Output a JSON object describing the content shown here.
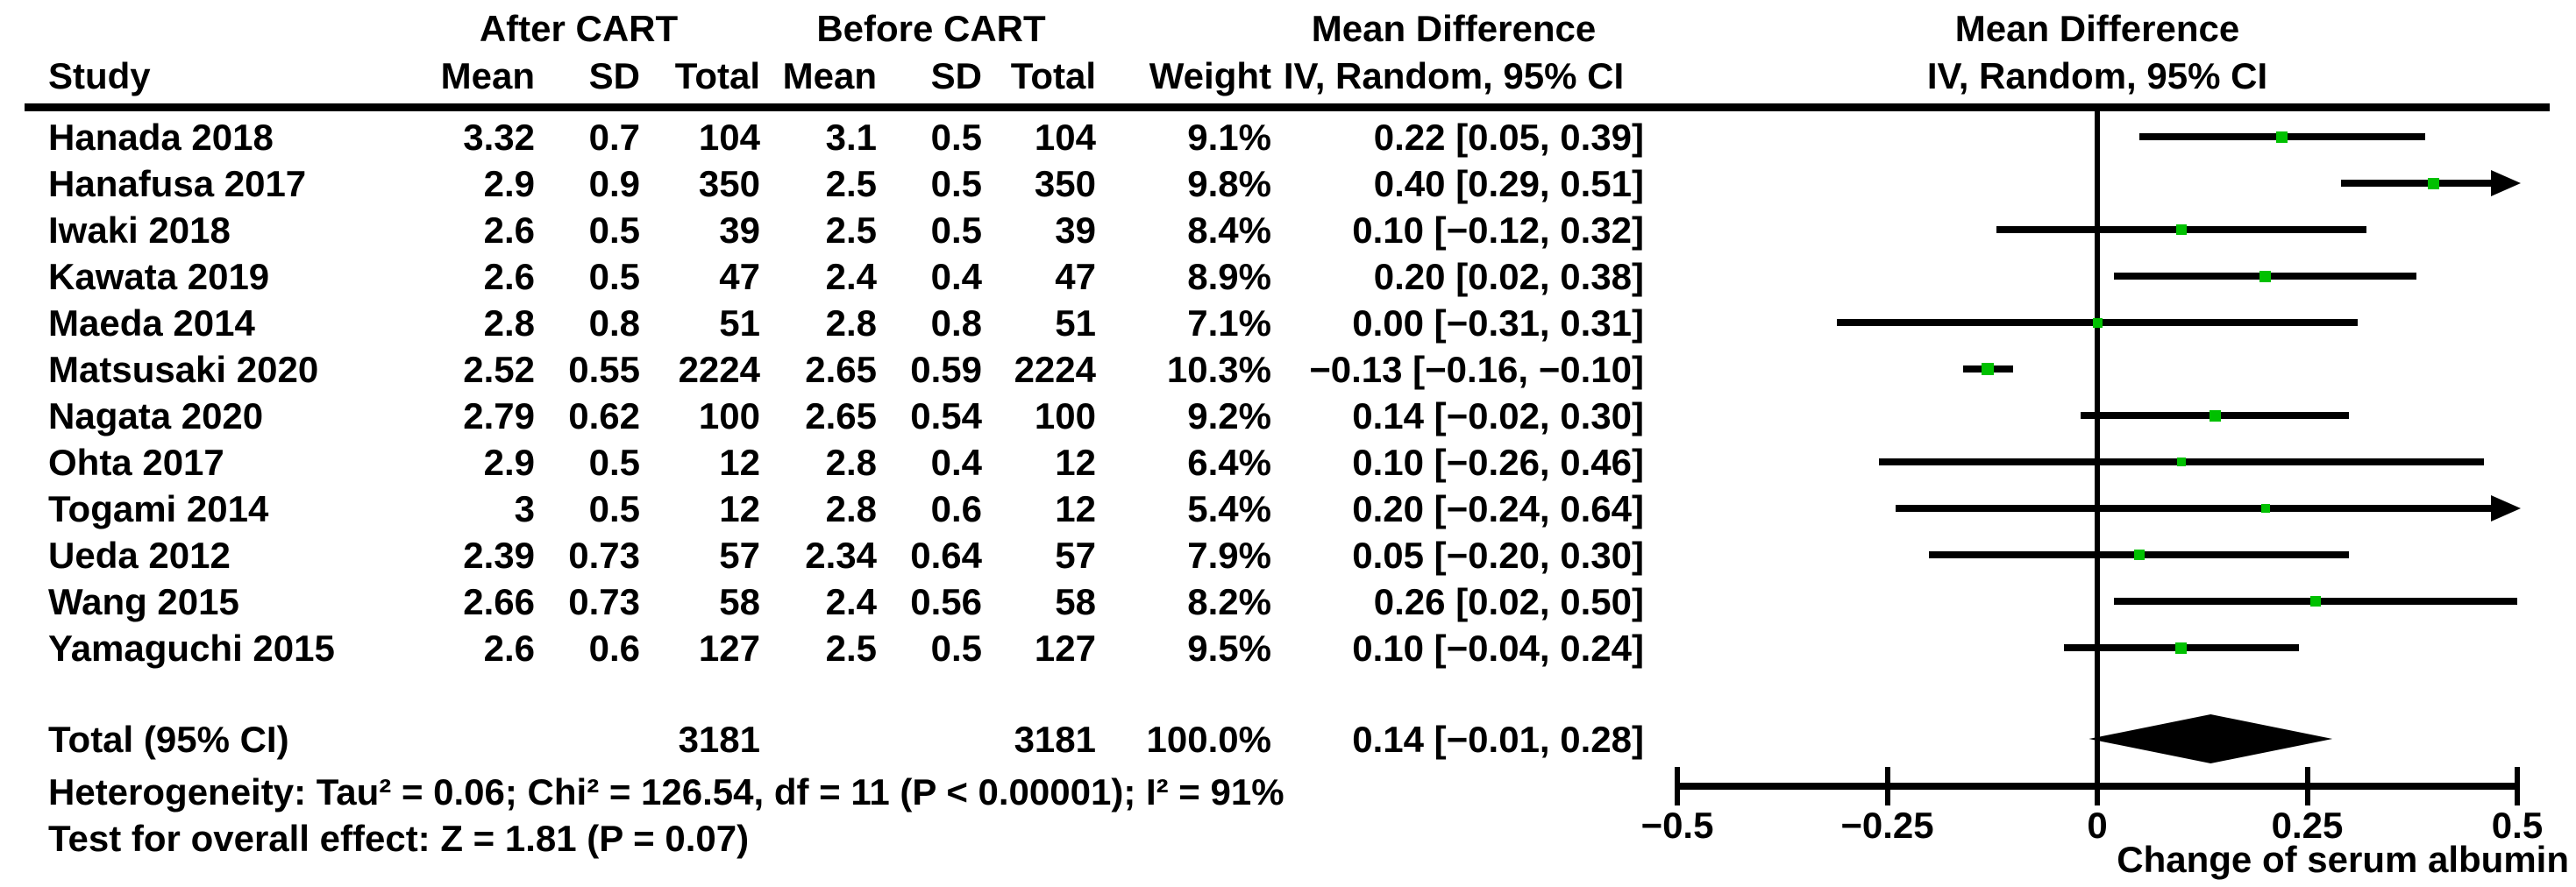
{
  "header": {
    "group_after": "After CART",
    "group_before": "Before CART",
    "col_study": "Study",
    "col_mean": "Mean",
    "col_sd": "SD",
    "col_total": "Total",
    "col_weight": "Weight",
    "md_title": "Mean Difference",
    "md_subtitle": "IV, Random, 95% CI"
  },
  "total_row": {
    "label": "Total (95% CI)",
    "total_after": "3181",
    "total_before": "3181",
    "weight": "100.0%",
    "ci_text": "0.14 [−0.01, 0.28]"
  },
  "footer": {
    "heterogeneity": "Heterogeneity: Tau² = 0.06; Chi² = 126.54, df = 11 (P < 0.00001); I² = 91%",
    "overall_effect": "Test for overall effect: Z = 1.81 (P = 0.07)"
  },
  "chart_data": {
    "type": "forest",
    "effect_measure": "Mean Difference",
    "method": "IV, Random, 95% CI",
    "marker_color": "#00c000",
    "diamond_color": "#000000",
    "axis": {
      "min": -0.5,
      "max": 0.5,
      "ticks": [
        -0.5,
        -0.25,
        0,
        0.25,
        0.5
      ],
      "tick_labels": [
        "−0.5",
        "−0.25",
        "0",
        "0.25",
        "0.5"
      ],
      "label": "Change of serum albumin"
    },
    "studies": [
      {
        "study": "Hanada 2018",
        "mean_after": "3.32",
        "sd_after": "0.7",
        "total_after": "104",
        "mean_before": "3.1",
        "sd_before": "0.5",
        "total_before": "104",
        "weight": "9.1%",
        "weight_pct": 9.1,
        "ci_text": "0.22 [0.05, 0.39]",
        "md": 0.22,
        "lo": 0.05,
        "hi": 0.39
      },
      {
        "study": "Hanafusa 2017",
        "mean_after": "2.9",
        "sd_after": "0.9",
        "total_after": "350",
        "mean_before": "2.5",
        "sd_before": "0.5",
        "total_before": "350",
        "weight": "9.8%",
        "weight_pct": 9.8,
        "ci_text": "0.40 [0.29, 0.51]",
        "md": 0.4,
        "lo": 0.29,
        "hi": 0.51
      },
      {
        "study": "Iwaki 2018",
        "mean_after": "2.6",
        "sd_after": "0.5",
        "total_after": "39",
        "mean_before": "2.5",
        "sd_before": "0.5",
        "total_before": "39",
        "weight": "8.4%",
        "weight_pct": 8.4,
        "ci_text": "0.10 [−0.12, 0.32]",
        "md": 0.1,
        "lo": -0.12,
        "hi": 0.32
      },
      {
        "study": "Kawata 2019",
        "mean_after": "2.6",
        "sd_after": "0.5",
        "total_after": "47",
        "mean_before": "2.4",
        "sd_before": "0.4",
        "total_before": "47",
        "weight": "8.9%",
        "weight_pct": 8.9,
        "ci_text": "0.20 [0.02, 0.38]",
        "md": 0.2,
        "lo": 0.02,
        "hi": 0.38
      },
      {
        "study": "Maeda 2014",
        "mean_after": "2.8",
        "sd_after": "0.8",
        "total_after": "51",
        "mean_before": "2.8",
        "sd_before": "0.8",
        "total_before": "51",
        "weight": "7.1%",
        "weight_pct": 7.1,
        "ci_text": "0.00 [−0.31, 0.31]",
        "md": 0.0,
        "lo": -0.31,
        "hi": 0.31
      },
      {
        "study": "Matsusaki 2020",
        "mean_after": "2.52",
        "sd_after": "0.55",
        "total_after": "2224",
        "mean_before": "2.65",
        "sd_before": "0.59",
        "total_before": "2224",
        "weight": "10.3%",
        "weight_pct": 10.3,
        "ci_text": "−0.13 [−0.16, −0.10]",
        "md": -0.13,
        "lo": -0.16,
        "hi": -0.1
      },
      {
        "study": "Nagata 2020",
        "mean_after": "2.79",
        "sd_after": "0.62",
        "total_after": "100",
        "mean_before": "2.65",
        "sd_before": "0.54",
        "total_before": "100",
        "weight": "9.2%",
        "weight_pct": 9.2,
        "ci_text": "0.14 [−0.02, 0.30]",
        "md": 0.14,
        "lo": -0.02,
        "hi": 0.3
      },
      {
        "study": "Ohta 2017",
        "mean_after": "2.9",
        "sd_after": "0.5",
        "total_after": "12",
        "mean_before": "2.8",
        "sd_before": "0.4",
        "total_before": "12",
        "weight": "6.4%",
        "weight_pct": 6.4,
        "ci_text": "0.10 [−0.26, 0.46]",
        "md": 0.1,
        "lo": -0.26,
        "hi": 0.46
      },
      {
        "study": "Togami 2014",
        "mean_after": "3",
        "sd_after": "0.5",
        "total_after": "12",
        "mean_before": "2.8",
        "sd_before": "0.6",
        "total_before": "12",
        "weight": "5.4%",
        "weight_pct": 5.4,
        "ci_text": "0.20 [−0.24, 0.64]",
        "md": 0.2,
        "lo": -0.24,
        "hi": 0.64
      },
      {
        "study": "Ueda 2012",
        "mean_after": "2.39",
        "sd_after": "0.73",
        "total_after": "57",
        "mean_before": "2.34",
        "sd_before": "0.64",
        "total_before": "57",
        "weight": "7.9%",
        "weight_pct": 7.9,
        "ci_text": "0.05 [−0.20, 0.30]",
        "md": 0.05,
        "lo": -0.2,
        "hi": 0.3
      },
      {
        "study": "Wang 2015",
        "mean_after": "2.66",
        "sd_after": "0.73",
        "total_after": "58",
        "mean_before": "2.4",
        "sd_before": "0.56",
        "total_before": "58",
        "weight": "8.2%",
        "weight_pct": 8.2,
        "ci_text": "0.26 [0.02, 0.50]",
        "md": 0.26,
        "lo": 0.02,
        "hi": 0.5
      },
      {
        "study": "Yamaguchi 2015",
        "mean_after": "2.6",
        "sd_after": "0.6",
        "total_after": "127",
        "mean_before": "2.5",
        "sd_before": "0.5",
        "total_before": "127",
        "weight": "9.5%",
        "weight_pct": 9.5,
        "ci_text": "0.10 [−0.04, 0.24]",
        "md": 0.1,
        "lo": -0.04,
        "hi": 0.24
      }
    ],
    "total": {
      "label": "Total (95% CI)",
      "total_after": 3181,
      "total_before": 3181,
      "weight": "100.0%",
      "md": 0.14,
      "lo": -0.01,
      "hi": 0.28,
      "ci_text": "0.14 [−0.01, 0.28]"
    },
    "heterogeneity": {
      "tau2": 0.06,
      "chi2": 126.54,
      "df": 11,
      "p": "< 0.00001",
      "i2": "91%"
    },
    "overall_effect": {
      "z": 1.81,
      "p": 0.07
    }
  }
}
